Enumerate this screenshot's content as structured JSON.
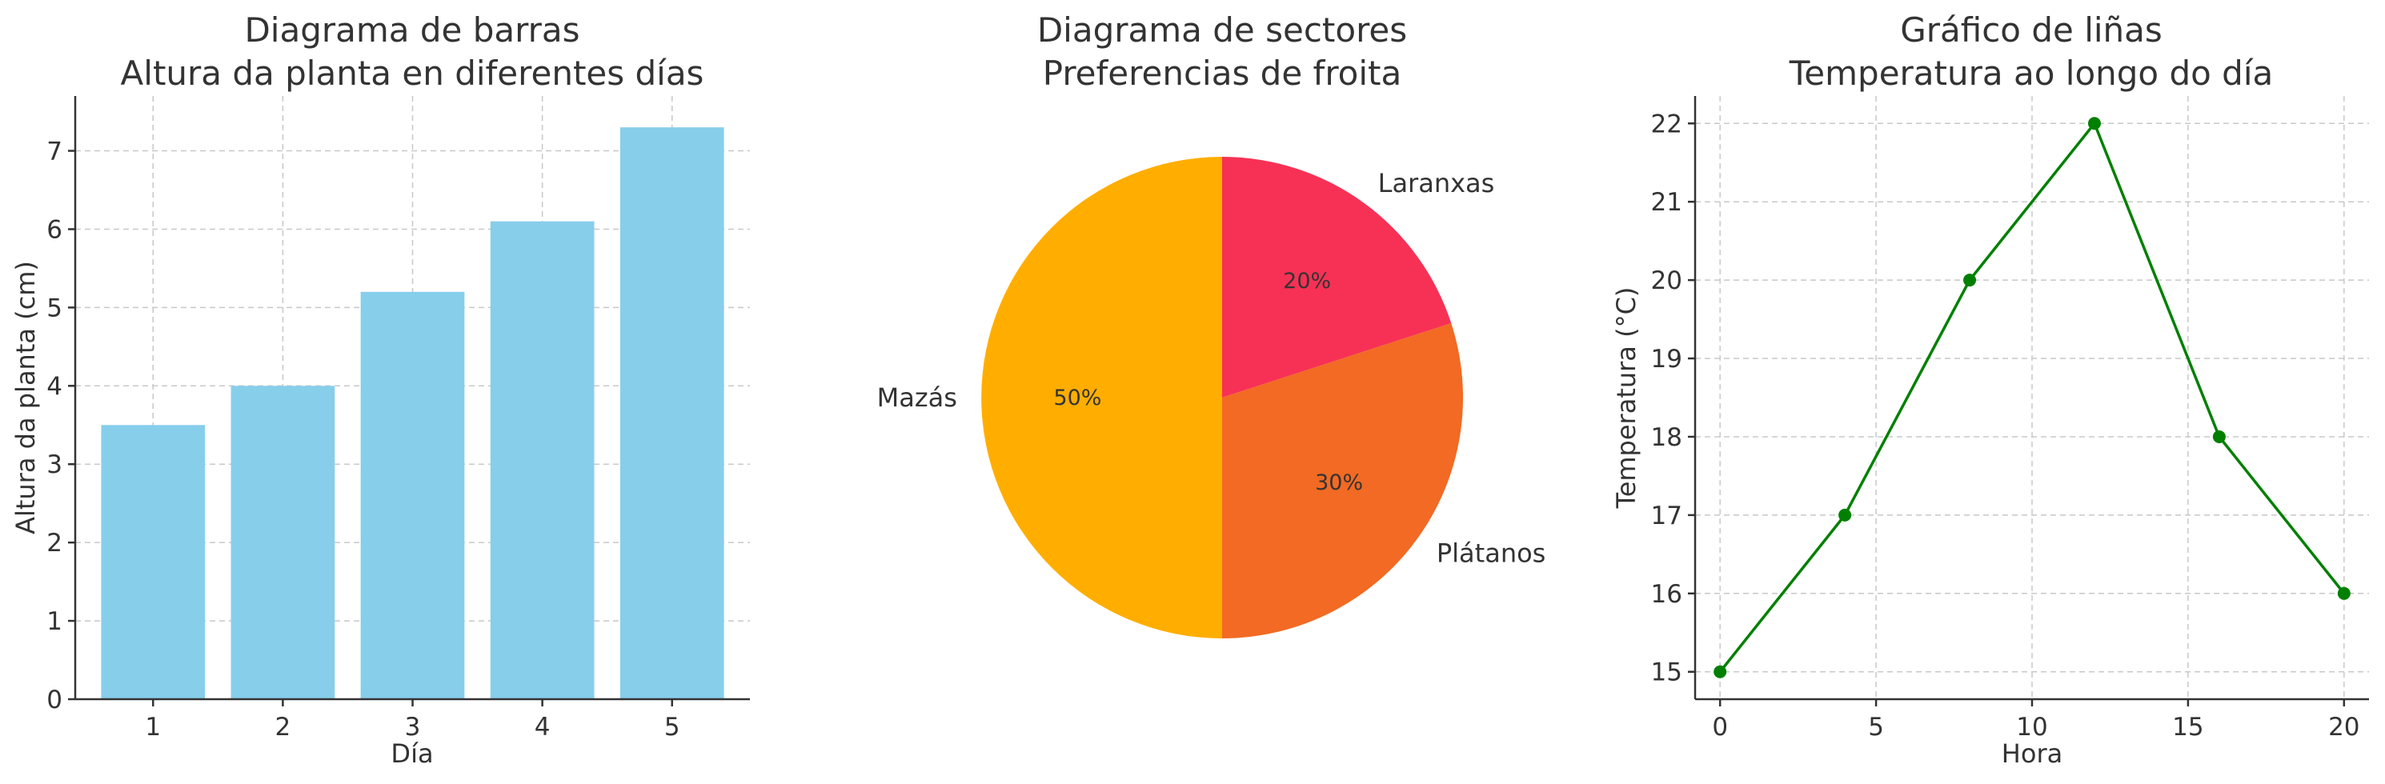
{
  "chart_data": [
    {
      "type": "bar",
      "title": "Diagrama de barras",
      "subtitle": "Altura da planta en diferentes días",
      "xlabel": "Día",
      "ylabel": "Altura da planta (cm)",
      "categories": [
        "1",
        "2",
        "3",
        "4",
        "5"
      ],
      "values": [
        3.5,
        4.0,
        5.2,
        6.1,
        7.3
      ],
      "ylim": [
        0,
        7.7
      ],
      "yticks": [
        0,
        1,
        2,
        3,
        4,
        5,
        6,
        7
      ],
      "grid": true,
      "color": "#87ceeb"
    },
    {
      "type": "pie",
      "title": "Diagrama de sectores",
      "subtitle": "Preferencias de froita",
      "slices": [
        {
          "label": "Mazás",
          "value": 50,
          "pct_label": "50%",
          "color": "#ffae00"
        },
        {
          "label": "Plátanos",
          "value": 30,
          "pct_label": "30%",
          "color": "#f26a23"
        },
        {
          "label": "Laranxas",
          "value": 20,
          "pct_label": "20%",
          "color": "#f73155"
        }
      ]
    },
    {
      "type": "line",
      "title": "Gráfico de liñas",
      "subtitle": "Temperatura ao longo do día",
      "xlabel": "Hora",
      "ylabel": "Temperatura (°C)",
      "x": [
        0,
        4,
        8,
        12,
        16,
        20
      ],
      "y": [
        15,
        17,
        20,
        22,
        18,
        16
      ],
      "xlim": [
        -0.8,
        20.8
      ],
      "ylim": [
        14.65,
        22.35
      ],
      "xticks": [
        0,
        5,
        10,
        15,
        20
      ],
      "yticks": [
        15,
        16,
        17,
        18,
        19,
        20,
        21,
        22
      ],
      "grid": true,
      "color": "#008000"
    }
  ]
}
